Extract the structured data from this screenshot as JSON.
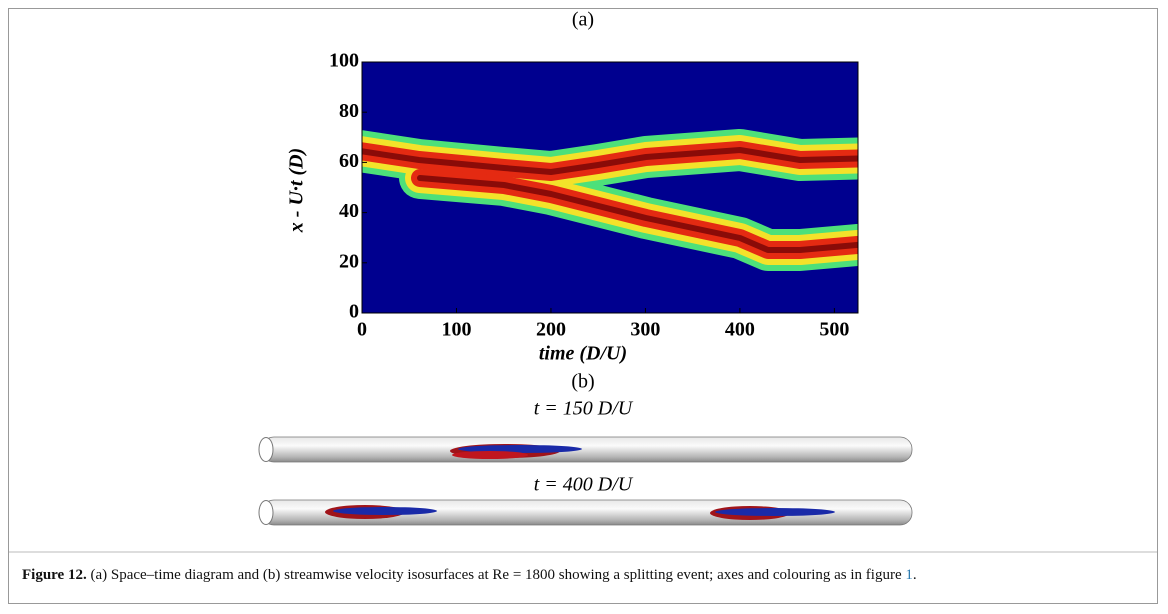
{
  "figure": {
    "panel_a": {
      "label": "(a)",
      "xlabel": "time (D/U)",
      "ylabel": "x - U·t (D)",
      "xlim": [
        0,
        525
      ],
      "xticks": [
        0,
        100,
        200,
        300,
        400,
        500
      ],
      "ylim": [
        0,
        100
      ],
      "yticks": [
        0,
        20,
        40,
        60,
        80,
        100
      ]
    },
    "panel_b": {
      "label": "(b)",
      "snapshots": [
        "t = 150 D/U",
        "t = 400 D/U"
      ]
    },
    "caption": {
      "label": "Figure 12.",
      "text": "(a) Space–time diagram and (b) streamwise velocity isosurfaces at Re = 1800 showing a splitting event; axes and colouring as in figure ",
      "link": "1",
      "end": "."
    }
  }
}
